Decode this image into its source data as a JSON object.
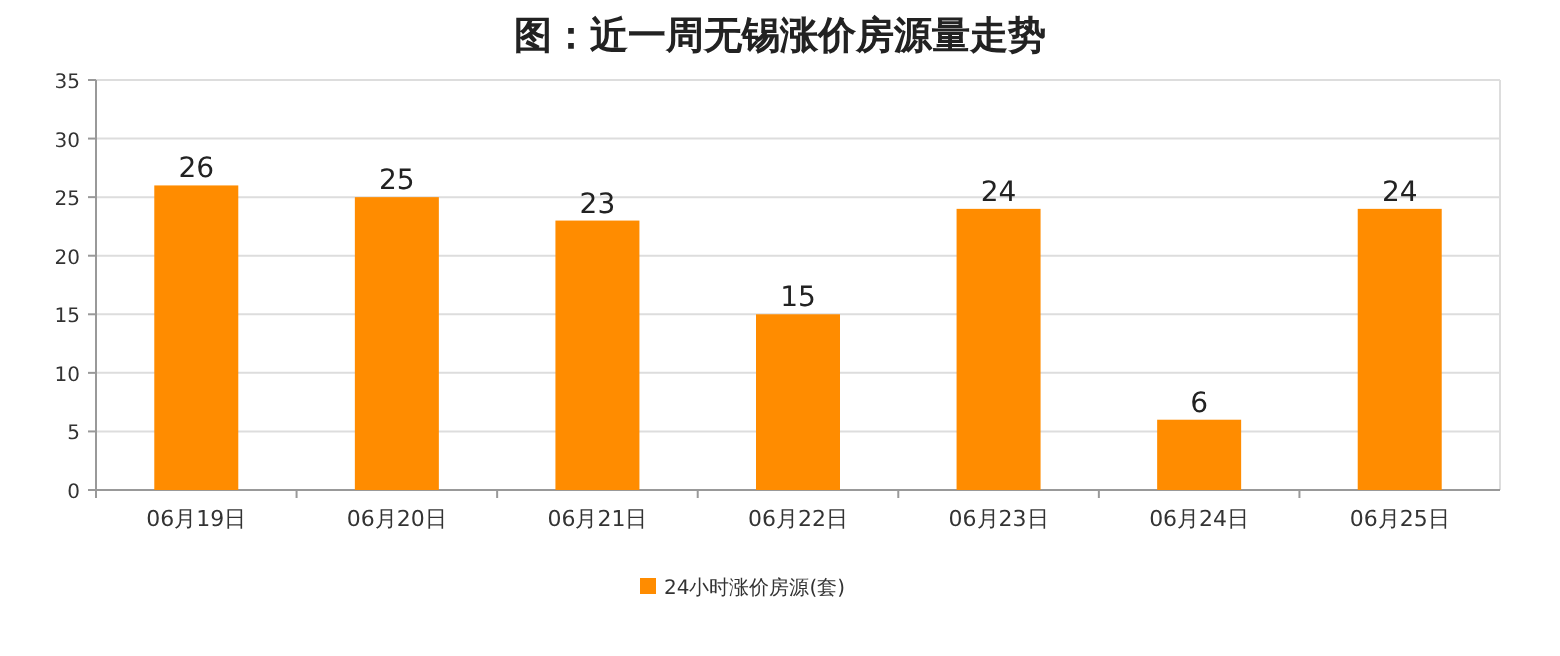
{
  "chart_data": {
    "type": "bar",
    "title": "图：近一周无锡涨价房源量走势",
    "categories": [
      "06月19日",
      "06月20日",
      "06月21日",
      "06月22日",
      "06月23日",
      "06月24日",
      "06月25日"
    ],
    "series": [
      {
        "name": "24小时涨价房源(套)",
        "color": "#ff8c00",
        "values": [
          26,
          25,
          23,
          15,
          24,
          6,
          24
        ]
      }
    ],
    "ylim": [
      0,
      35
    ],
    "yticks": [
      0,
      5,
      10,
      15,
      20,
      25,
      30,
      35
    ],
    "grid": "y",
    "legend": "bottom",
    "data_labels": true
  }
}
